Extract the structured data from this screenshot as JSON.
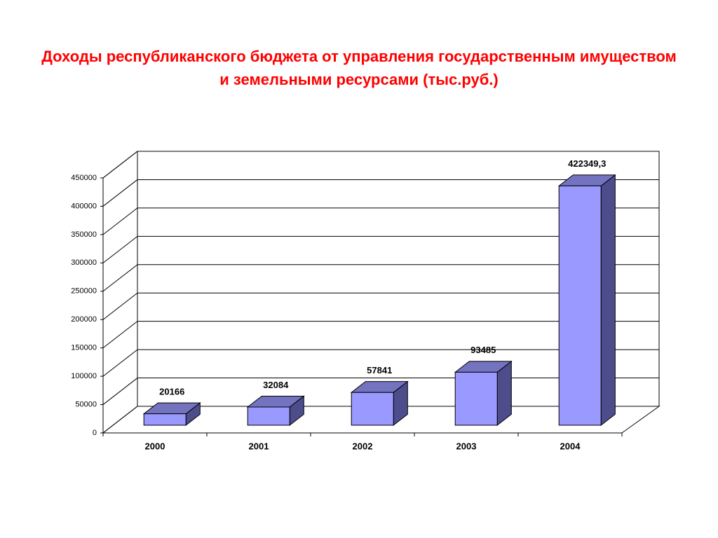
{
  "chart_data": {
    "type": "bar3d",
    "title": "Доходы республиканского бюджета от управления государственным имуществом и земельными ресурсами (тыс.руб.)",
    "categories": [
      "2000",
      "2001",
      "2002",
      "2003",
      "2004"
    ],
    "values": [
      20166,
      32084,
      57841,
      93485,
      422349.3
    ],
    "value_labels": [
      "20166",
      "32084",
      "57841",
      "93485",
      "422349,3"
    ],
    "color": "#9999ff",
    "ylim": [
      0,
      450000
    ],
    "yticks": [
      0,
      50000,
      100000,
      150000,
      200000,
      250000,
      300000,
      350000,
      400000,
      450000
    ],
    "grid": true
  }
}
